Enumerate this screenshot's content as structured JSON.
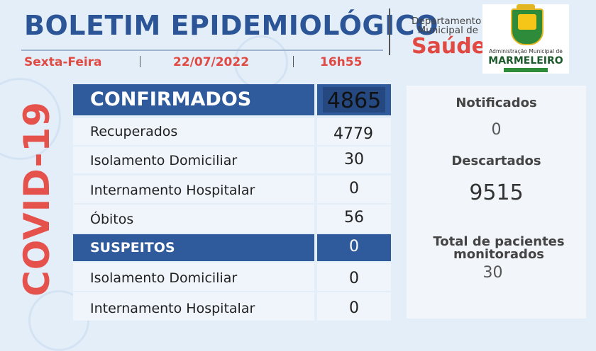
{
  "header": {
    "title": "BOLETIM EPIDEMIOLÓGICO",
    "day": "Sexta-Feira",
    "date": "22/07/2022",
    "time": "16h55"
  },
  "department": {
    "line1": "Departamento",
    "line2": "Municipal de",
    "saude": "Saúde"
  },
  "logo": {
    "admin_text": "Administração Municipal de",
    "city": "MARMELEIRO"
  },
  "side_label": "COVID-19",
  "table": {
    "confirmados": {
      "label": "CONFIRMADOS",
      "value": "4865"
    },
    "recuperados": {
      "label": "Recuperados",
      "value": "4779"
    },
    "isolamento1": {
      "label": "Isolamento Domiciliar",
      "value": "30"
    },
    "internamento1": {
      "label": "Internamento Hospitalar",
      "value": "0"
    },
    "obitos": {
      "label": "Óbitos",
      "value": "56"
    },
    "suspeitos": {
      "label": "SUSPEITOS",
      "value": "0"
    },
    "isolamento2": {
      "label": "Isolamento Domiciliar",
      "value": "0"
    },
    "internamento2": {
      "label": "Internamento Hospitalar",
      "value": "0"
    }
  },
  "right": {
    "notificados": {
      "label": "Notificados",
      "value": "0"
    },
    "descartados": {
      "label": "Descartados",
      "value": "9515"
    },
    "monitorados": {
      "label": "Total de pacientes monitorados",
      "value": "30"
    }
  },
  "colors": {
    "blue": "#2f5a9c",
    "red": "#e5524b",
    "bg": "#e4eef8"
  }
}
